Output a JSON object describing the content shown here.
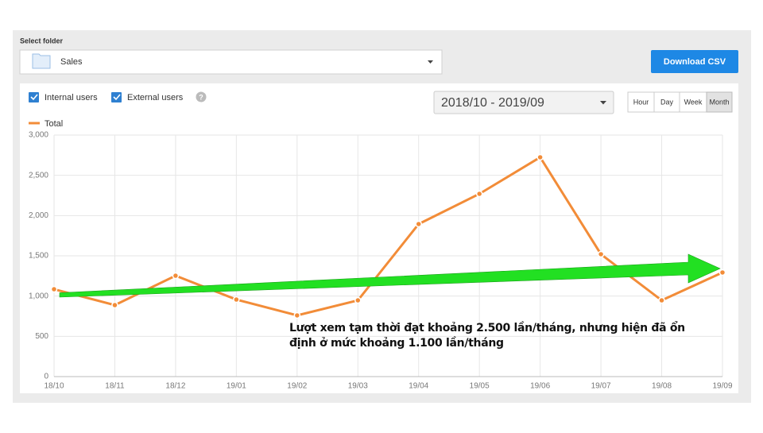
{
  "folder": {
    "label": "Select folder",
    "value": "Sales"
  },
  "download_button": "Download CSV",
  "filters": {
    "internal": "Internal users",
    "external": "External users"
  },
  "help": "?",
  "date_range": "2018/10 - 2019/09",
  "granularity": [
    "Hour",
    "Day",
    "Week",
    "Month"
  ],
  "annotation": "Lượt xem tạm thời đạt khoảng 2.500 lần/tháng, nhưng hiện đã ổn định ở mức khoảng 1.100 lần/tháng",
  "chart_data": {
    "type": "line",
    "categories": [
      "18/10",
      "18/11",
      "18/12",
      "19/01",
      "19/02",
      "19/03",
      "19/04",
      "19/05",
      "19/06",
      "19/07",
      "19/08",
      "19/09"
    ],
    "series": [
      {
        "name": "Total",
        "color": "#f28c38",
        "values": [
          1085,
          888,
          1253,
          957,
          760,
          947,
          1895,
          2270,
          2724,
          1520,
          947,
          1293
        ]
      }
    ],
    "ylim": [
      0,
      3000
    ],
    "yticks": [
      0,
      500,
      {
        "value": 1000,
        "label": "1,000"
      },
      {
        "value": 1500,
        "label": "1,500"
      },
      {
        "value": 2000,
        "label": "2,000"
      },
      {
        "value": 2500,
        "label": "2,500"
      },
      {
        "value": 3000,
        "label": "3,000"
      }
    ],
    "grid": true
  }
}
